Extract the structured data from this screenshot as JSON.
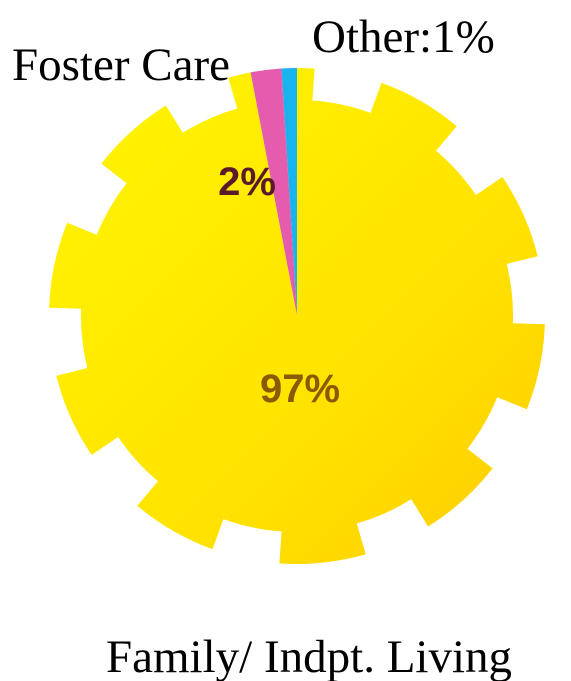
{
  "chart_data": {
    "type": "pie",
    "slices": [
      {
        "label": "Family/ Indpt. Living",
        "value": 97,
        "value_label": "97%",
        "color": "#FFE500",
        "label_color": "#8B5A00"
      },
      {
        "label": "Foster Care",
        "value": 2,
        "value_label": "2%",
        "color": "#E55BAE",
        "label_color": "#5A1A2A"
      },
      {
        "label": "Other",
        "value": 1,
        "value_label": "Other:1%",
        "color": "#18B4F0",
        "label_color": "#000000"
      }
    ],
    "legend": "none"
  }
}
